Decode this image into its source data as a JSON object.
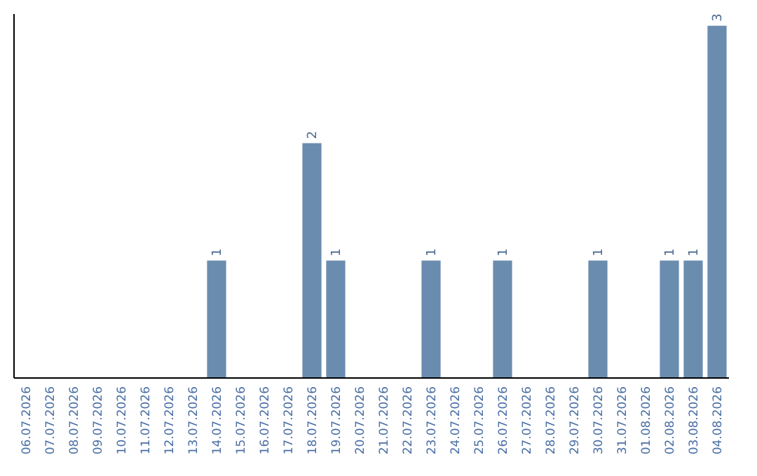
{
  "chart_data": {
    "type": "bar",
    "categories": [
      "06.07.2026",
      "07.07.2026",
      "08.07.2026",
      "09.07.2026",
      "10.07.2026",
      "11.07.2026",
      "12.07.2026",
      "13.07.2026",
      "14.07.2026",
      "15.07.2026",
      "16.07.2026",
      "17.07.2026",
      "18.07.2026",
      "19.07.2026",
      "20.07.2026",
      "21.07.2026",
      "22.07.2026",
      "23.07.2026",
      "24.07.2026",
      "25.07.2026",
      "26.07.2026",
      "27.07.2026",
      "28.07.2026",
      "29.07.2026",
      "30.07.2026",
      "31.07.2026",
      "01.08.2026",
      "02.08.2026",
      "03.08.2026",
      "04.08.2026"
    ],
    "values": [
      0,
      0,
      0,
      0,
      0,
      0,
      0,
      0,
      1,
      0,
      0,
      0,
      2,
      1,
      0,
      0,
      0,
      1,
      0,
      0,
      1,
      0,
      0,
      0,
      1,
      0,
      0,
      1,
      1,
      3
    ],
    "value_labels": [
      null,
      null,
      null,
      null,
      null,
      null,
      null,
      null,
      "1",
      null,
      null,
      null,
      "2",
      "1",
      null,
      null,
      null,
      "1",
      null,
      null,
      "1",
      null,
      null,
      null,
      "1",
      null,
      null,
      "1",
      "1",
      "3"
    ],
    "color": "#6a8caf",
    "ylim": [
      0,
      3.1
    ]
  }
}
